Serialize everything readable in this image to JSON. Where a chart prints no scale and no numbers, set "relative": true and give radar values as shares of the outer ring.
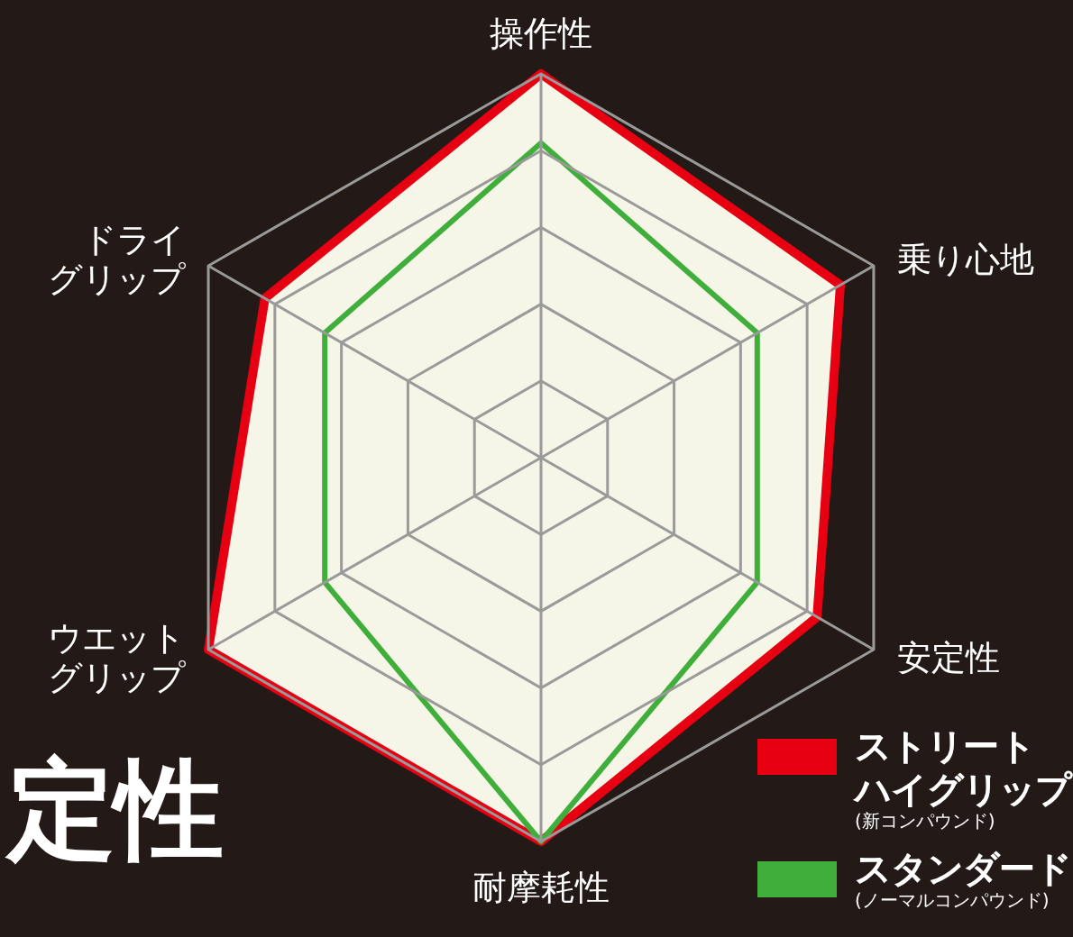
{
  "chart_data": {
    "type": "radar",
    "relative": true,
    "categories": [
      "操作性",
      "乗り心地",
      "安定性",
      "耐摩耗性",
      "ウエットグリップ",
      "ドライグリップ"
    ],
    "series": [
      {
        "name": "ストリートハイグリップ",
        "color": "#e60012",
        "values": [
          1.0,
          0.9,
          0.83,
          1.0,
          1.0,
          0.83
        ]
      },
      {
        "name": "スタンダード",
        "color": "#3fae3a",
        "values": [
          0.82,
          0.65,
          0.65,
          1.0,
          0.65,
          0.65
        ]
      }
    ],
    "legend": "bottom right",
    "annotations": [
      "定性",
      "(新コンパウンド)",
      "(ノーマルコンパウンド)"
    ]
  }
}
